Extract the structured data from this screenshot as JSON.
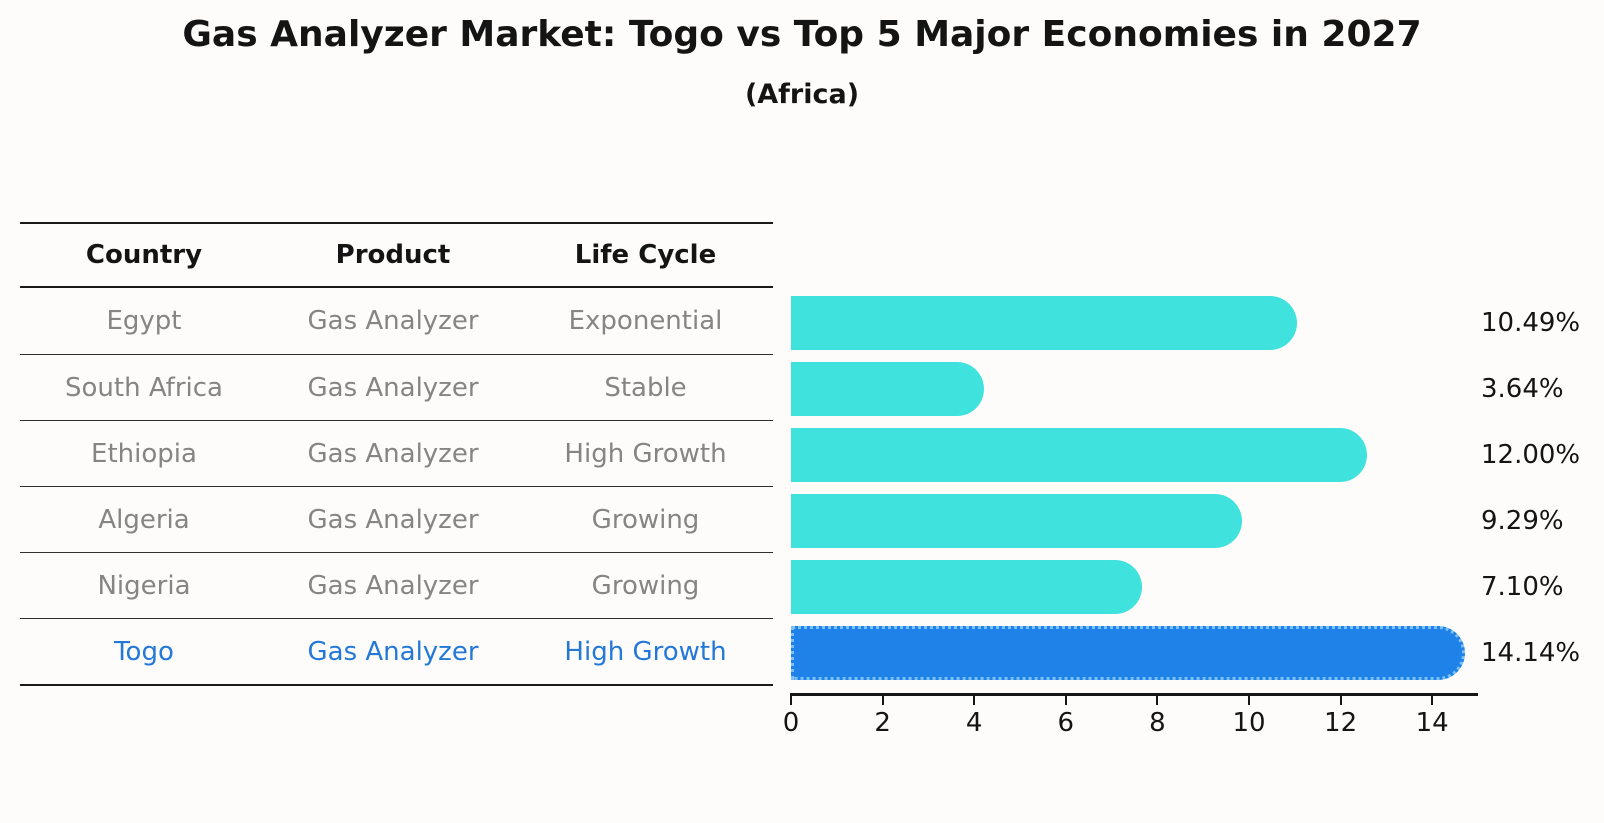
{
  "title": "Gas Analyzer Market: Togo vs Top 5 Major Economies in 2027",
  "subtitle": "(Africa)",
  "table": {
    "headers": [
      "Country",
      "Product",
      "Life Cycle"
    ],
    "rows": [
      {
        "country": "Egypt",
        "product": "Gas Analyzer",
        "life_cycle": "Exponential",
        "highlight": false
      },
      {
        "country": "South Africa",
        "product": "Gas Analyzer",
        "life_cycle": "Stable",
        "highlight": false
      },
      {
        "country": "Ethiopia",
        "product": "Gas Analyzer",
        "life_cycle": "High Growth",
        "highlight": false
      },
      {
        "country": "Algeria",
        "product": "Gas Analyzer",
        "life_cycle": "Growing",
        "highlight": false
      },
      {
        "country": "Nigeria",
        "product": "Gas Analyzer",
        "life_cycle": "Growing",
        "highlight": true
      }
    ],
    "togo_row": {
      "country": "Togo",
      "product": "Gas Analyzer",
      "life_cycle": "High Growth"
    }
  },
  "chart_data": {
    "type": "bar",
    "orientation": "horizontal",
    "title": "Gas Analyzer Market: Togo vs Top 5 Major Economies in 2027",
    "subtitle": "(Africa)",
    "categories": [
      "Egypt",
      "South Africa",
      "Ethiopia",
      "Algeria",
      "Nigeria",
      "Togo"
    ],
    "values": [
      10.49,
      3.64,
      12.0,
      9.29,
      7.1,
      14.14
    ],
    "bar_labels": [
      "10.49%",
      "3.64%",
      "12.00%",
      "9.29%",
      "7.10%",
      "14.14%"
    ],
    "x_ticks": [
      "0",
      "2",
      "4",
      "6",
      "8",
      "10",
      "12",
      "14"
    ],
    "xlim": [
      0,
      15
    ],
    "grid": false,
    "legend": "none",
    "highlight_index": 5,
    "bar_color": "#40e2de",
    "highlight_color": "#1e82e8",
    "highlight_text_color": "#2479d8"
  }
}
